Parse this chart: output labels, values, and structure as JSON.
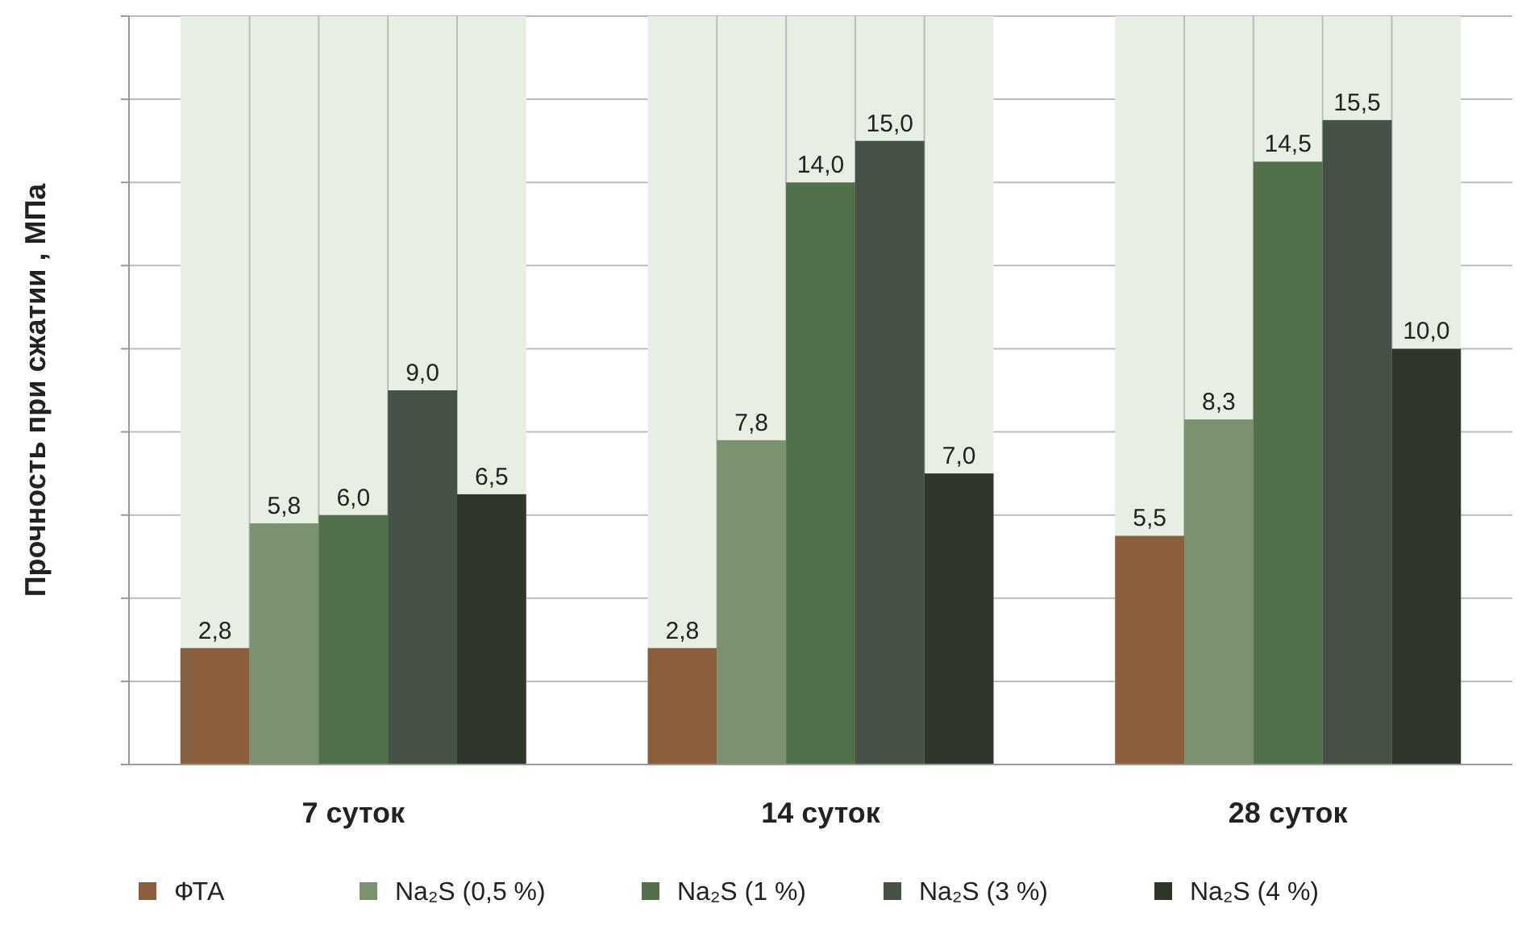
{
  "chart_data": {
    "type": "bar",
    "ylabel": "Прочность при сжатии , МПа",
    "categories": [
      "7 суток",
      "14 суток",
      "28 суток"
    ],
    "series": [
      {
        "name": "ФТА",
        "color": "#8b5e3c",
        "values": [
          2.8,
          2.8,
          5.5
        ],
        "value_labels": [
          "2,8",
          "2,8",
          "5,5"
        ]
      },
      {
        "name": "Na₂S (0,5 %)",
        "color": "#7a9270",
        "values": [
          5.8,
          7.8,
          8.3
        ],
        "value_labels": [
          "5,8",
          "7,8",
          "8,3"
        ]
      },
      {
        "name": "Na₂S (1 %)",
        "color": "#52704a",
        "values": [
          6.0,
          14.0,
          14.5
        ],
        "value_labels": [
          "6,0",
          "14,0",
          "14,5"
        ]
      },
      {
        "name": "Na₂S (3 %)",
        "color": "#465246",
        "values": [
          9.0,
          15.0,
          15.5
        ],
        "value_labels": [
          "9,0",
          "15,0",
          "15,5"
        ]
      },
      {
        "name": "Na₂S (4 %)",
        "color": "#2e3529",
        "values": [
          6.5,
          7.0,
          10.0
        ],
        "value_labels": [
          "6,5",
          "7,0",
          "10,0"
        ]
      }
    ],
    "bands": [
      {
        "axis": "x",
        "from": "7 суток",
        "to": "7 суток",
        "color": "#e7efe3"
      },
      {
        "axis": "x",
        "from": "14 суток",
        "to": "14 суток",
        "color": "#e7efe3"
      },
      {
        "axis": "x",
        "from": "28 суток",
        "to": "28 суток",
        "color": "#e7efe3"
      }
    ],
    "ylim": [
      0,
      18
    ],
    "yticks": [
      {
        "value": 0,
        "label": null
      },
      {
        "value": 2,
        "label": null
      },
      {
        "value": 4,
        "label": null
      },
      {
        "value": 6,
        "label": null
      },
      {
        "value": 8,
        "label": null
      },
      {
        "value": 10,
        "label": null
      },
      {
        "value": 12,
        "label": null
      },
      {
        "value": 14,
        "label": null
      },
      {
        "value": 16,
        "label": null
      },
      {
        "value": 18,
        "label": null
      }
    ],
    "grid": "y",
    "legend": "bottom",
    "tick_labels": "x"
  }
}
